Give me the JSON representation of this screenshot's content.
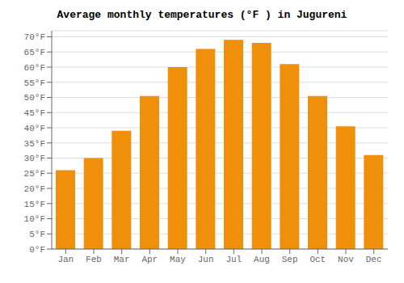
{
  "chart_data": {
    "type": "bar",
    "title": "Average monthly temperatures (°F ) in Jugureni",
    "categories": [
      "Jan",
      "Feb",
      "Mar",
      "Apr",
      "May",
      "Jun",
      "Jul",
      "Aug",
      "Sep",
      "Oct",
      "Nov",
      "Dec"
    ],
    "values": [
      26.0,
      30.0,
      39.0,
      50.5,
      60.0,
      66.0,
      69.0,
      68.0,
      61.0,
      50.5,
      40.5,
      31.0
    ],
    "color": "#F0900A",
    "ylim": [
      0,
      72
    ],
    "yticks": [
      {
        "value": 0,
        "label": "0°F"
      },
      {
        "value": 5,
        "label": "5°F"
      },
      {
        "value": 10,
        "label": "10°F"
      },
      {
        "value": 15,
        "label": "15°F"
      },
      {
        "value": 20,
        "label": "20°F"
      },
      {
        "value": 25,
        "label": "25°F"
      },
      {
        "value": 30,
        "label": "30°F"
      },
      {
        "value": 35,
        "label": "35°F"
      },
      {
        "value": 40,
        "label": "40°F"
      },
      {
        "value": 45,
        "label": "45°F"
      },
      {
        "value": 50,
        "label": "50°F"
      },
      {
        "value": 55,
        "label": "55°F"
      },
      {
        "value": 60,
        "label": "60°F"
      },
      {
        "value": 65,
        "label": "65°F"
      },
      {
        "value": 70,
        "label": "70°F"
      }
    ],
    "grid": true
  }
}
